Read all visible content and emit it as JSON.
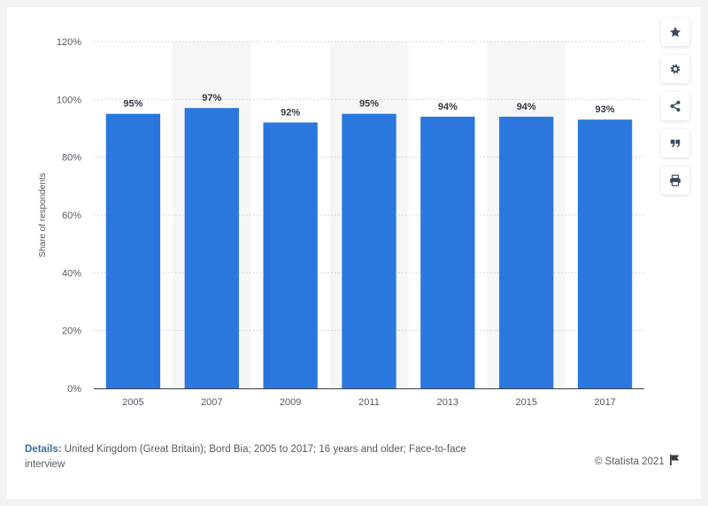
{
  "chart_data": {
    "type": "bar",
    "categories": [
      "2005",
      "2007",
      "2009",
      "2011",
      "2013",
      "2015",
      "2017"
    ],
    "values": [
      95,
      97,
      92,
      95,
      94,
      94,
      93
    ],
    "value_labels": [
      "95%",
      "97%",
      "92%",
      "95%",
      "94%",
      "94%",
      "93%"
    ],
    "ylabel": "Share of respondents",
    "ylim": [
      0,
      120
    ],
    "yticks": [
      0,
      20,
      40,
      60,
      80,
      100,
      120
    ],
    "ytick_labels": [
      "0%",
      "20%",
      "40%",
      "60%",
      "80%",
      "100%",
      "120%"
    ],
    "grid": true,
    "bar_color": "#2a77dd"
  },
  "details": {
    "label": "Details:",
    "text": "United Kingdom (Great Britain); Bord Bia; 2005 to 2017; 16 years and older; Face-to-face interview"
  },
  "copyright": "© Statista 2021",
  "toolbar": {
    "icons": [
      "star-icon",
      "gear-icon",
      "share-icon",
      "quote-icon",
      "print-icon"
    ]
  },
  "colors": {
    "accent": "#2a77dd",
    "icon": "#3c4a5e",
    "band": "#f6f6f7"
  }
}
